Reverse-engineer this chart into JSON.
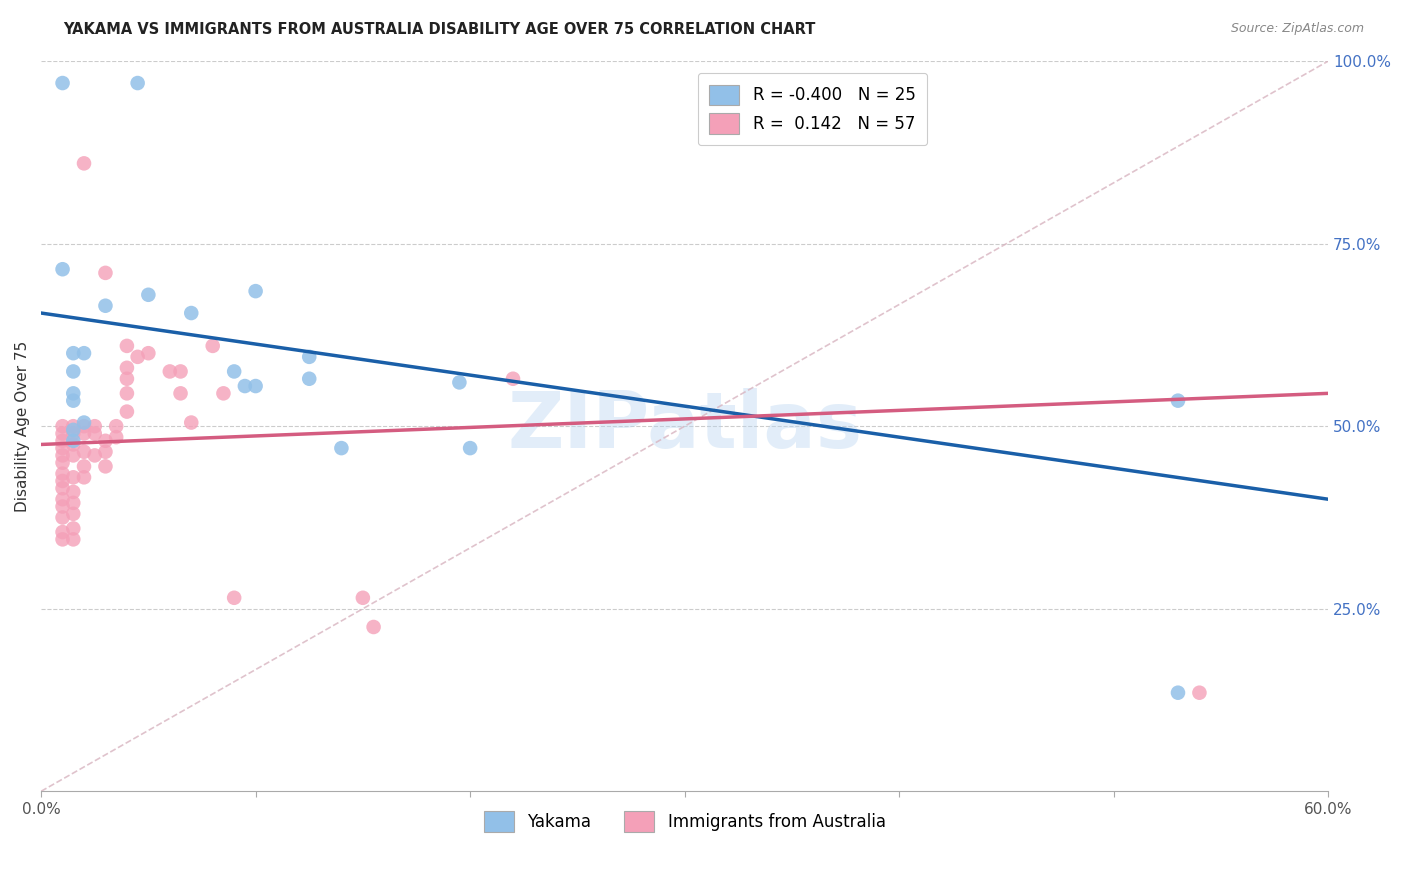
{
  "title": "YAKAMA VS IMMIGRANTS FROM AUSTRALIA DISABILITY AGE OVER 75 CORRELATION CHART",
  "source": "Source: ZipAtlas.com",
  "ylabel_label": "Disability Age Over 75",
  "x_min": 0.0,
  "x_max": 0.6,
  "y_min": 0.0,
  "y_max": 1.0,
  "yakama_color": "#92C0E8",
  "immigrants_color": "#F4A0B8",
  "yakama_line_color": "#1A5FA8",
  "immigrants_line_color": "#D45C80",
  "diagonal_color": "#D8B4C0",
  "R_yakama": -0.4,
  "N_yakama": 25,
  "R_immigrants": 0.142,
  "N_immigrants": 57,
  "legend_label_1": "Yakama",
  "legend_label_2": "Immigrants from Australia",
  "watermark": "ZIPatlas",
  "yakama_line_x0": 0.0,
  "yakama_line_y0": 0.655,
  "yakama_line_x1": 0.6,
  "yakama_line_y1": 0.4,
  "immigrants_line_x0": 0.0,
  "immigrants_line_y0": 0.475,
  "immigrants_line_x1": 0.6,
  "immigrants_line_y1": 0.545,
  "yakama_x": [
    0.01,
    0.045,
    0.01,
    0.03,
    0.05,
    0.02,
    0.015,
    0.015,
    0.015,
    0.02,
    0.015,
    0.015,
    0.09,
    0.1,
    0.125,
    0.125,
    0.14,
    0.195,
    0.095,
    0.1,
    0.2,
    0.53,
    0.53,
    0.015,
    0.07
  ],
  "yakama_y": [
    0.97,
    0.97,
    0.715,
    0.665,
    0.68,
    0.6,
    0.575,
    0.545,
    0.535,
    0.505,
    0.495,
    0.48,
    0.575,
    0.685,
    0.595,
    0.565,
    0.47,
    0.56,
    0.555,
    0.555,
    0.47,
    0.535,
    0.135,
    0.6,
    0.655
  ],
  "immigrants_x": [
    0.01,
    0.01,
    0.01,
    0.01,
    0.01,
    0.01,
    0.01,
    0.01,
    0.01,
    0.01,
    0.01,
    0.01,
    0.01,
    0.01,
    0.015,
    0.015,
    0.015,
    0.015,
    0.015,
    0.015,
    0.015,
    0.015,
    0.015,
    0.015,
    0.02,
    0.02,
    0.02,
    0.02,
    0.02,
    0.025,
    0.025,
    0.025,
    0.03,
    0.03,
    0.03,
    0.035,
    0.035,
    0.04,
    0.04,
    0.04,
    0.04,
    0.04,
    0.045,
    0.05,
    0.06,
    0.065,
    0.065,
    0.07,
    0.08,
    0.085,
    0.09,
    0.15,
    0.155,
    0.22,
    0.54,
    0.02,
    0.03
  ],
  "immigrants_y": [
    0.5,
    0.49,
    0.48,
    0.47,
    0.46,
    0.45,
    0.435,
    0.425,
    0.415,
    0.4,
    0.39,
    0.375,
    0.355,
    0.345,
    0.5,
    0.49,
    0.475,
    0.46,
    0.43,
    0.41,
    0.395,
    0.38,
    0.36,
    0.345,
    0.5,
    0.49,
    0.465,
    0.445,
    0.43,
    0.5,
    0.49,
    0.46,
    0.48,
    0.465,
    0.445,
    0.5,
    0.485,
    0.61,
    0.58,
    0.565,
    0.545,
    0.52,
    0.595,
    0.6,
    0.575,
    0.575,
    0.545,
    0.505,
    0.61,
    0.545,
    0.265,
    0.265,
    0.225,
    0.565,
    0.135,
    0.86,
    0.71
  ]
}
